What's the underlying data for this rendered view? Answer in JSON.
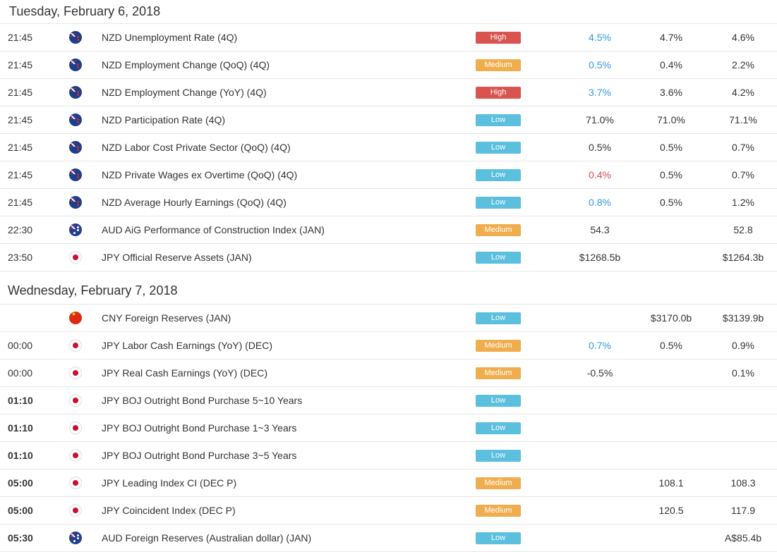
{
  "days": [
    {
      "title": "Tuesday, February 6, 2018",
      "events": [
        {
          "time": "21:45",
          "flag": "nz",
          "event": "NZD Unemployment Rate (4Q)",
          "impact": "High",
          "actual": "4.5%",
          "actual_state": "better",
          "forecast": "4.7%",
          "previous": "4.6%"
        },
        {
          "time": "21:45",
          "flag": "nz",
          "event": "NZD Employment Change (QoQ) (4Q)",
          "impact": "Medium",
          "actual": "0.5%",
          "actual_state": "better",
          "forecast": "0.4%",
          "previous": "2.2%"
        },
        {
          "time": "21:45",
          "flag": "nz",
          "event": "NZD Employment Change (YoY) (4Q)",
          "impact": "High",
          "actual": "3.7%",
          "actual_state": "better",
          "forecast": "3.6%",
          "previous": "4.2%"
        },
        {
          "time": "21:45",
          "flag": "nz",
          "event": "NZD Participation Rate (4Q)",
          "impact": "Low",
          "actual": "71.0%",
          "actual_state": "",
          "forecast": "71.0%",
          "previous": "71.1%"
        },
        {
          "time": "21:45",
          "flag": "nz",
          "event": "NZD Labor Cost Private Sector (QoQ) (4Q)",
          "impact": "Low",
          "actual": "0.5%",
          "actual_state": "",
          "forecast": "0.5%",
          "previous": "0.7%"
        },
        {
          "time": "21:45",
          "flag": "nz",
          "event": "NZD Private Wages ex Overtime (QoQ) (4Q)",
          "impact": "Low",
          "actual": "0.4%",
          "actual_state": "worse",
          "forecast": "0.5%",
          "previous": "0.7%"
        },
        {
          "time": "21:45",
          "flag": "nz",
          "event": "NZD Average Hourly Earnings (QoQ) (4Q)",
          "impact": "Low",
          "actual": "0.8%",
          "actual_state": "better",
          "forecast": "0.5%",
          "previous": "1.2%"
        },
        {
          "time": "22:30",
          "flag": "au",
          "event": "AUD AiG Performance of Construction Index (JAN)",
          "impact": "Medium",
          "actual": "54.3",
          "actual_state": "",
          "forecast": "",
          "previous": "52.8"
        },
        {
          "time": "23:50",
          "flag": "jp",
          "event": "JPY Official Reserve Assets (JAN)",
          "impact": "Low",
          "actual": "$1268.5b",
          "actual_state": "",
          "forecast": "",
          "previous": "$1264.3b"
        }
      ]
    },
    {
      "title": "Wednesday, February 7, 2018",
      "events": [
        {
          "time": "",
          "flag": "cn",
          "event": "CNY Foreign Reserves (JAN)",
          "impact": "Low",
          "actual": "",
          "actual_state": "",
          "forecast": "$3170.0b",
          "previous": "$3139.9b"
        },
        {
          "time": "00:00",
          "flag": "jp",
          "event": "JPY Labor Cash Earnings (YoY) (DEC)",
          "impact": "Medium",
          "actual": "0.7%",
          "actual_state": "better",
          "forecast": "0.5%",
          "previous": "0.9%"
        },
        {
          "time": "00:00",
          "flag": "jp",
          "event": "JPY Real Cash Earnings (YoY) (DEC)",
          "impact": "Medium",
          "actual": "-0.5%",
          "actual_state": "",
          "forecast": "",
          "previous": "0.1%"
        },
        {
          "time": "01:10",
          "flag": "jp",
          "event": "JPY BOJ Outright Bond Purchase 5~10 Years",
          "impact": "Low",
          "actual": "",
          "actual_state": "",
          "forecast": "",
          "previous": "",
          "bold_time": true
        },
        {
          "time": "01:10",
          "flag": "jp",
          "event": "JPY BOJ Outright Bond Purchase 1~3 Years",
          "impact": "Low",
          "actual": "",
          "actual_state": "",
          "forecast": "",
          "previous": "",
          "bold_time": true
        },
        {
          "time": "01:10",
          "flag": "jp",
          "event": "JPY BOJ Outright Bond Purchase 3~5 Years",
          "impact": "Low",
          "actual": "",
          "actual_state": "",
          "forecast": "",
          "previous": "",
          "bold_time": true
        },
        {
          "time": "05:00",
          "flag": "jp",
          "event": "JPY Leading Index CI (DEC P)",
          "impact": "Medium",
          "actual": "",
          "actual_state": "",
          "forecast": "108.1",
          "previous": "108.3",
          "bold_time": true
        },
        {
          "time": "05:00",
          "flag": "jp",
          "event": "JPY Coincident Index (DEC P)",
          "impact": "Medium",
          "actual": "",
          "actual_state": "",
          "forecast": "120.5",
          "previous": "117.9",
          "bold_time": true
        },
        {
          "time": "05:30",
          "flag": "au",
          "event": "AUD Foreign Reserves (Australian dollar) (JAN)",
          "impact": "Low",
          "actual": "",
          "actual_state": "",
          "forecast": "",
          "previous": "A$85.4b",
          "bold_time": true
        }
      ]
    }
  ],
  "colors": {
    "high": "#d9534f",
    "medium": "#f0ad4e",
    "low": "#5bc0de",
    "better": "#3399dd",
    "worse": "#e04848"
  }
}
